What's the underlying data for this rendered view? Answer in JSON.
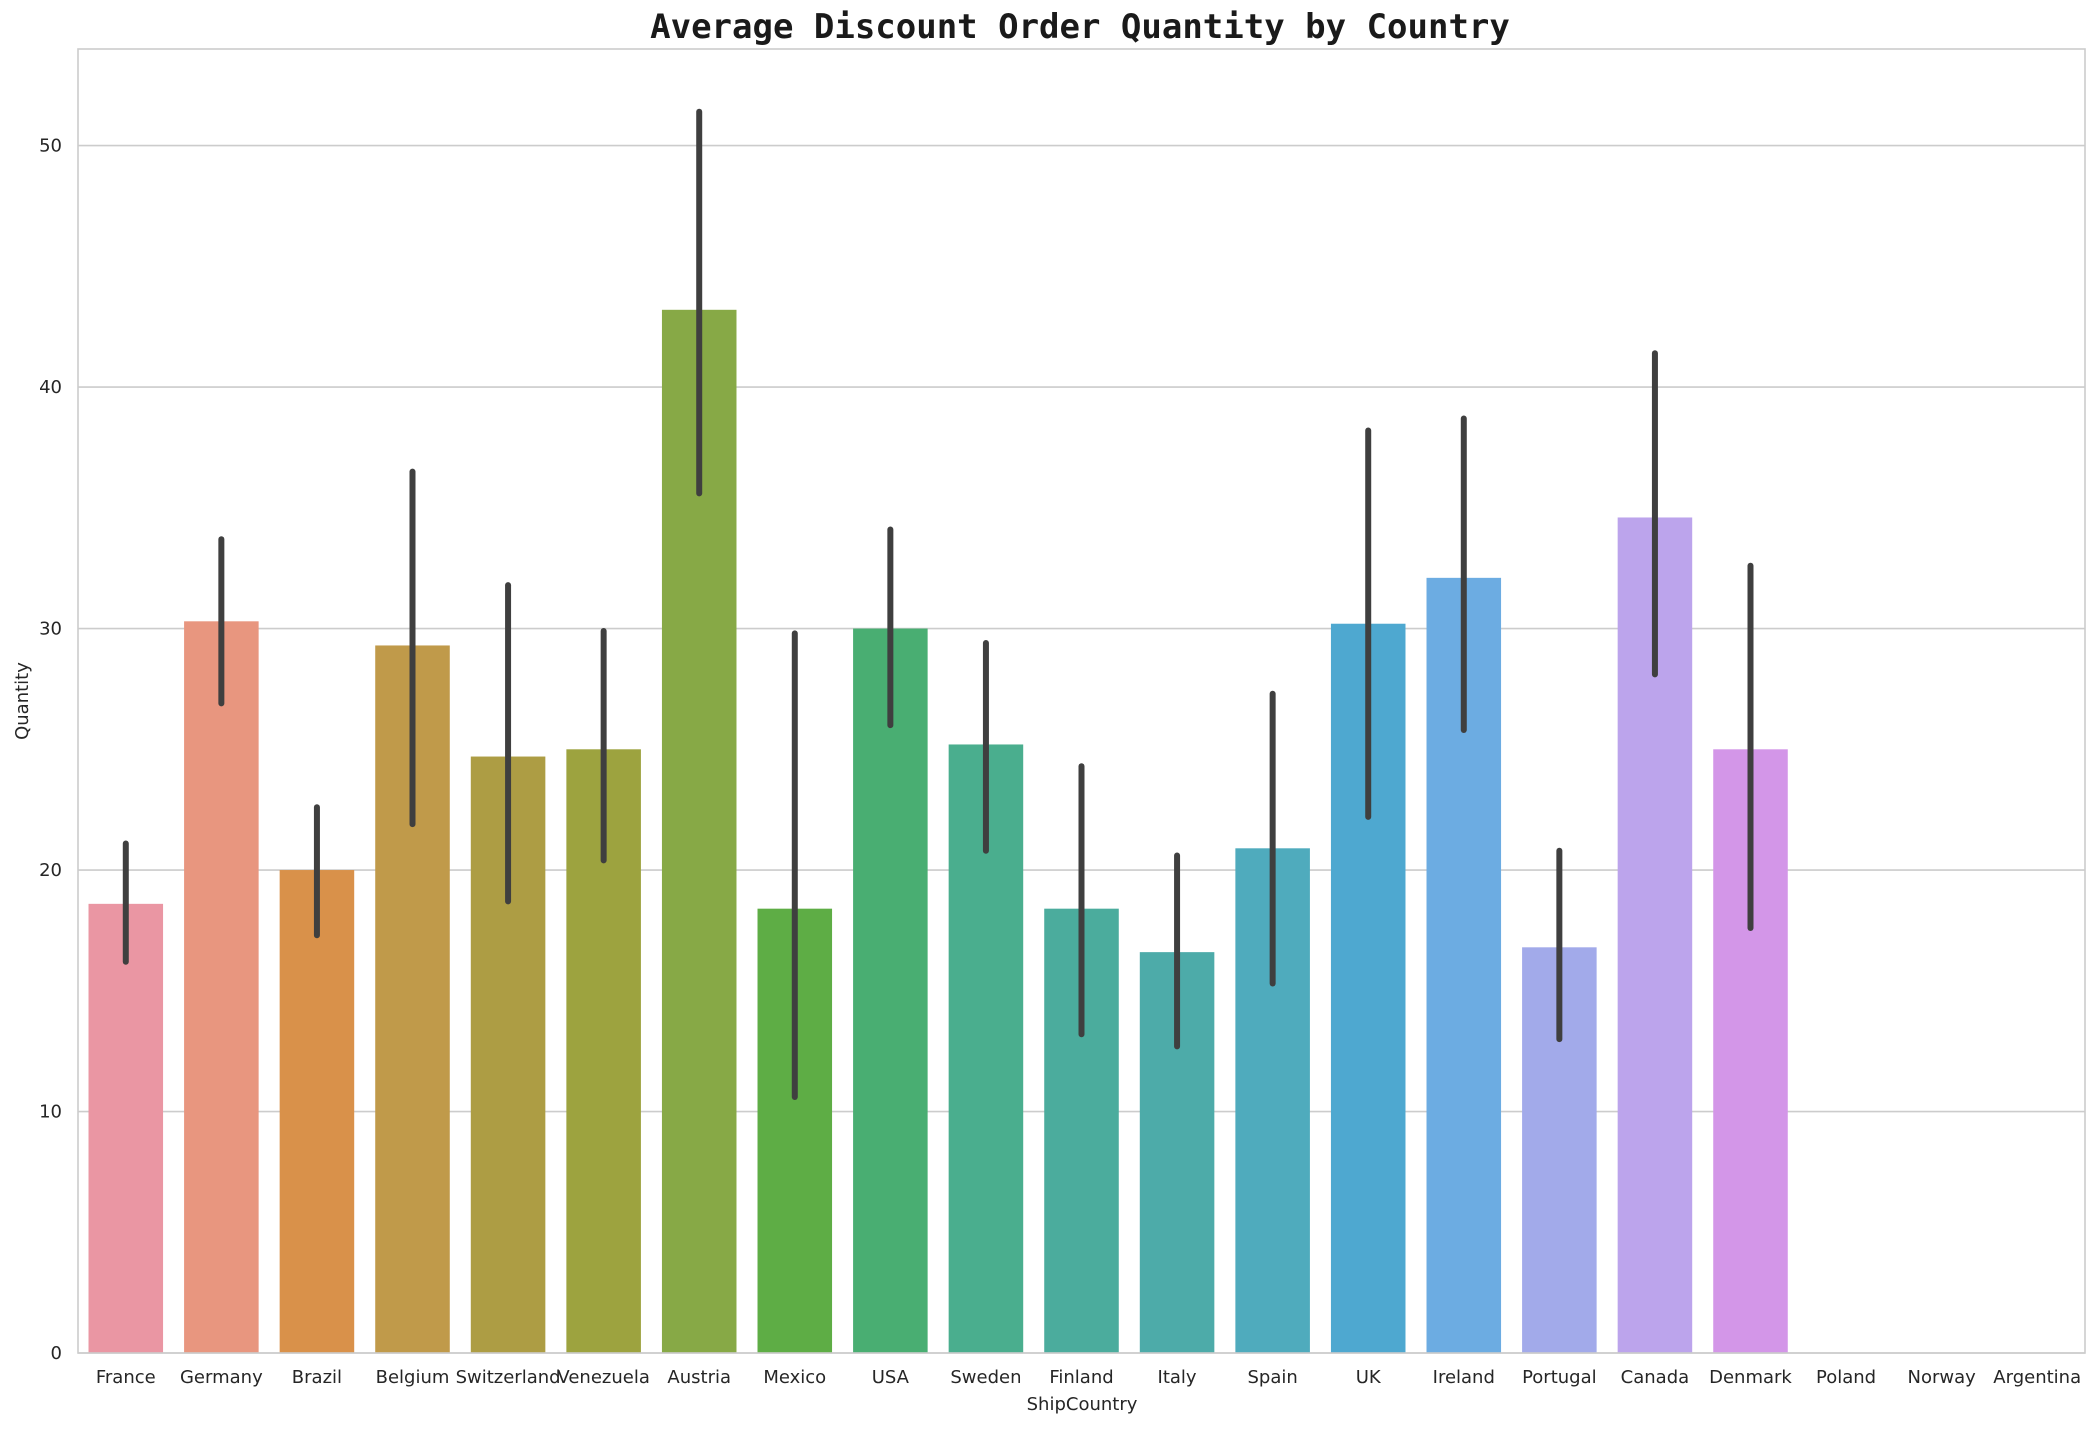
{
  "chart_data": {
    "type": "bar",
    "title": "Average Discount Order Quantity by Country",
    "xlabel": "ShipCountry",
    "ylabel": "Quantity",
    "ylim": [
      0,
      54
    ],
    "yticks": [
      0,
      10,
      20,
      30,
      40,
      50
    ],
    "grid": true,
    "categories": [
      "France",
      "Germany",
      "Brazil",
      "Belgium",
      "Switzerland",
      "Venezuela",
      "Austria",
      "Mexico",
      "USA",
      "Sweden",
      "Finland",
      "Italy",
      "Spain",
      "UK",
      "Ireland",
      "Portugal",
      "Canada",
      "Denmark",
      "Poland",
      "Norway",
      "Argentina"
    ],
    "values": [
      18.6,
      30.3,
      20.0,
      29.3,
      24.7,
      25.0,
      43.2,
      18.4,
      30.0,
      25.2,
      18.4,
      16.6,
      20.9,
      30.2,
      32.1,
      16.8,
      34.6,
      25.0,
      null,
      null,
      null
    ],
    "error_low": [
      16.2,
      26.9,
      17.3,
      21.9,
      18.7,
      20.4,
      35.6,
      10.6,
      26.0,
      20.8,
      13.2,
      12.7,
      15.3,
      22.2,
      25.8,
      13.0,
      28.1,
      17.6,
      null,
      null,
      null
    ],
    "error_high": [
      21.1,
      33.7,
      22.6,
      36.5,
      31.8,
      29.9,
      51.4,
      29.8,
      34.1,
      29.4,
      24.3,
      20.6,
      27.3,
      38.2,
      38.7,
      20.8,
      41.4,
      32.6,
      null,
      null,
      null
    ],
    "colors": [
      "#ea96a3",
      "#e8967f",
      "#d9914a",
      "#c09a4a",
      "#ad9d44",
      "#9da33f",
      "#87a946",
      "#5ead45",
      "#49ae72",
      "#4aae8e",
      "#4bac9d",
      "#4daba9",
      "#4fabbd",
      "#4ea8d0",
      "#6cace2",
      "#a2aaea",
      "#bca4ec",
      "#d396e8",
      "#e88fcf",
      "#ea91b8",
      "#ea94a9"
    ],
    "error_color": "#3f3f3f"
  }
}
